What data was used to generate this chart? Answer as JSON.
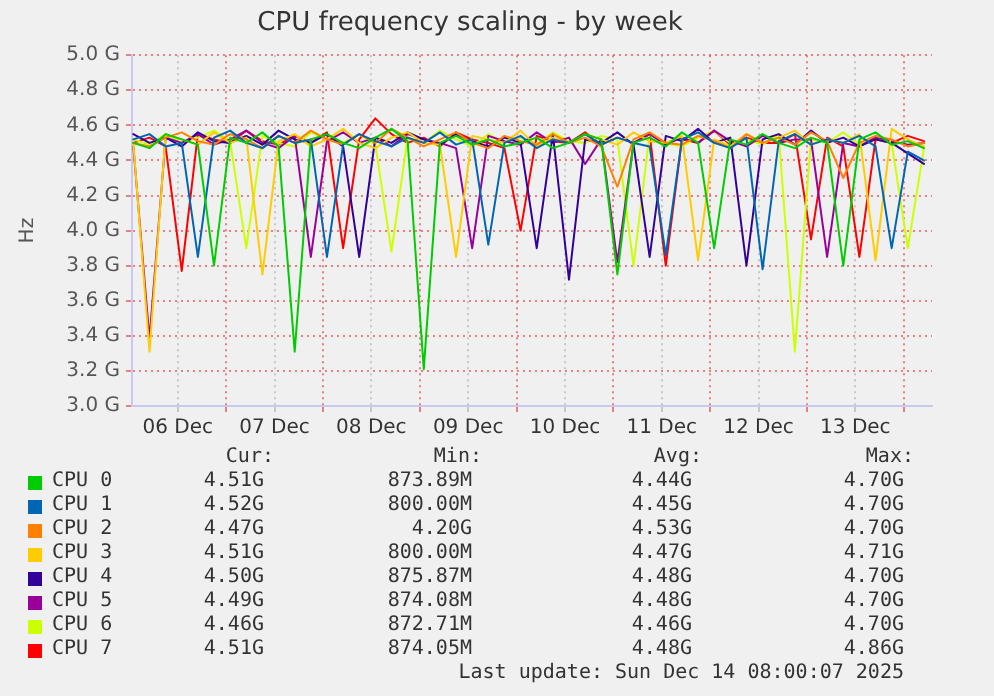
{
  "chart_data": {
    "type": "line",
    "title": "CPU frequency scaling - by week",
    "ylabel": "Hz",
    "x": [
      "2025-12-06T01:00",
      "2025-12-06T05:00",
      "2025-12-06T09:00",
      "2025-12-06T13:00",
      "2025-12-06T17:00",
      "2025-12-06T21:00",
      "2025-12-07T01:00",
      "2025-12-07T05:00",
      "2025-12-07T09:00",
      "2025-12-07T13:00",
      "2025-12-07T17:00",
      "2025-12-07T21:00",
      "2025-12-08T01:00",
      "2025-12-08T05:00",
      "2025-12-08T09:00",
      "2025-12-08T13:00",
      "2025-12-08T17:00",
      "2025-12-08T21:00",
      "2025-12-09T01:00",
      "2025-12-09T05:00",
      "2025-12-09T09:00",
      "2025-12-09T13:00",
      "2025-12-09T17:00",
      "2025-12-09T21:00",
      "2025-12-10T01:00",
      "2025-12-10T05:00",
      "2025-12-10T09:00",
      "2025-12-10T13:00",
      "2025-12-10T17:00",
      "2025-12-10T21:00",
      "2025-12-11T01:00",
      "2025-12-11T05:00",
      "2025-12-11T09:00",
      "2025-12-11T13:00",
      "2025-12-11T17:00",
      "2025-12-11T21:00",
      "2025-12-12T01:00",
      "2025-12-12T05:00",
      "2025-12-12T09:00",
      "2025-12-12T13:00",
      "2025-12-12T17:00",
      "2025-12-12T21:00",
      "2025-12-13T01:00",
      "2025-12-13T05:00",
      "2025-12-13T09:00",
      "2025-12-13T13:00",
      "2025-12-13T17:00",
      "2025-12-13T21:00",
      "2025-12-14T01:00",
      "2025-12-14T05:00"
    ],
    "series": [
      {
        "name": "CPU 0",
        "color": "#00cc00",
        "values": [
          4.5,
          4.47,
          4.55,
          4.52,
          4.49,
          3.8,
          4.53,
          4.5,
          4.56,
          4.48,
          3.31,
          4.52,
          4.55,
          4.5,
          4.47,
          4.53,
          4.58,
          4.51,
          3.21,
          4.5,
          4.54,
          4.49,
          4.52,
          4.48,
          4.5,
          4.53,
          4.47,
          4.5,
          4.55,
          4.52,
          3.75,
          4.5,
          4.53,
          4.48,
          4.56,
          4.5,
          3.9,
          4.52,
          4.49,
          4.55,
          4.5,
          4.47,
          4.53,
          4.5,
          3.8,
          4.52,
          4.56,
          4.49,
          4.51,
          4.47
        ]
      },
      {
        "name": "CPU 1",
        "color": "#0066b3",
        "values": [
          4.52,
          4.55,
          4.48,
          4.5,
          3.85,
          4.53,
          4.57,
          4.5,
          4.47,
          4.54,
          4.5,
          4.52,
          3.85,
          4.49,
          4.55,
          4.51,
          4.48,
          4.53,
          4.5,
          4.56,
          4.49,
          4.52,
          3.92,
          4.5,
          4.54,
          4.47,
          4.52,
          4.5,
          4.55,
          4.49,
          4.53,
          4.5,
          4.48,
          3.86,
          4.52,
          4.56,
          4.5,
          4.47,
          4.53,
          3.78,
          4.51,
          4.55,
          4.49,
          4.52,
          4.5,
          4.54,
          4.48,
          3.9,
          4.45,
          4.4
        ]
      },
      {
        "name": "CPU 2",
        "color": "#ff8000",
        "values": [
          4.5,
          4.48,
          4.53,
          4.56,
          4.51,
          4.49,
          4.55,
          4.52,
          4.47,
          4.54,
          4.5,
          4.57,
          4.52,
          4.49,
          4.55,
          4.5,
          4.58,
          4.53,
          4.48,
          4.52,
          4.56,
          4.5,
          4.47,
          4.54,
          4.51,
          4.49,
          4.55,
          4.5,
          4.53,
          4.48,
          4.25,
          4.52,
          4.56,
          4.5,
          4.49,
          4.54,
          4.51,
          4.47,
          4.55,
          4.5,
          4.53,
          4.49,
          4.56,
          4.51,
          4.3,
          4.5,
          4.54,
          4.52,
          4.48,
          4.5
        ]
      },
      {
        "name": "CPU 3",
        "color": "#ffcc00",
        "values": [
          4.5,
          3.31,
          4.55,
          4.52,
          4.49,
          4.56,
          4.5,
          4.53,
          3.75,
          4.51,
          4.55,
          4.48,
          4.52,
          4.58,
          4.5,
          4.47,
          4.53,
          4.56,
          4.5,
          4.49,
          3.85,
          4.54,
          4.52,
          4.5,
          4.57,
          4.48,
          4.53,
          4.5,
          4.55,
          4.52,
          4.49,
          4.56,
          4.51,
          4.5,
          4.54,
          3.83,
          4.52,
          4.48,
          4.55,
          4.5,
          4.53,
          4.57,
          4.49,
          4.52,
          4.5,
          4.55,
          3.83,
          4.58,
          4.52,
          4.48
        ]
      },
      {
        "name": "CPU 4",
        "color": "#330099",
        "values": [
          4.55,
          4.5,
          4.53,
          4.48,
          4.56,
          4.51,
          4.5,
          4.54,
          4.49,
          4.57,
          4.52,
          4.5,
          4.55,
          4.48,
          3.85,
          4.53,
          4.5,
          4.56,
          4.52,
          4.49,
          4.55,
          4.51,
          4.48,
          4.53,
          4.5,
          3.9,
          4.55,
          3.72,
          4.52,
          4.5,
          4.56,
          4.49,
          3.85,
          4.54,
          4.51,
          4.58,
          4.5,
          4.53,
          3.8,
          4.52,
          4.55,
          4.49,
          4.57,
          4.5,
          4.53,
          4.48,
          4.52,
          4.5,
          4.44,
          4.38
        ]
      },
      {
        "name": "CPU 5",
        "color": "#990099",
        "values": [
          4.48,
          3.38,
          4.53,
          4.5,
          4.55,
          4.49,
          4.52,
          4.57,
          4.5,
          4.47,
          4.54,
          3.85,
          4.51,
          4.56,
          4.5,
          4.53,
          4.48,
          4.55,
          4.52,
          4.5,
          4.47,
          3.9,
          4.54,
          4.51,
          4.49,
          4.56,
          4.5,
          4.53,
          4.38,
          4.52,
          3.82,
          4.5,
          4.55,
          4.49,
          4.53,
          4.5,
          4.57,
          4.51,
          4.48,
          4.54,
          4.5,
          4.52,
          4.52,
          3.85,
          4.5,
          4.48,
          4.53,
          4.51,
          4.49,
          4.5
        ]
      },
      {
        "name": "CPU 6",
        "color": "#ccff00",
        "values": [
          4.52,
          4.49,
          4.55,
          4.5,
          4.53,
          4.57,
          4.51,
          3.9,
          4.54,
          4.5,
          4.48,
          4.56,
          4.52,
          4.5,
          4.55,
          4.49,
          3.88,
          4.53,
          4.5,
          4.57,
          4.52,
          4.48,
          4.55,
          4.5,
          4.53,
          4.49,
          4.56,
          4.51,
          4.5,
          4.54,
          4.52,
          3.8,
          4.55,
          4.5,
          4.48,
          4.53,
          4.57,
          4.5,
          4.52,
          4.49,
          4.55,
          3.31,
          4.52,
          4.5,
          4.56,
          4.49,
          4.53,
          4.5,
          3.9,
          4.47
        ]
      },
      {
        "name": "CPU 7",
        "color": "#ff0000",
        "values": [
          4.5,
          4.53,
          4.48,
          3.77,
          4.55,
          4.52,
          4.5,
          4.57,
          4.51,
          4.49,
          4.54,
          4.5,
          4.56,
          3.9,
          4.52,
          4.64,
          4.55,
          4.5,
          4.53,
          4.48,
          4.56,
          4.52,
          4.5,
          4.47,
          4.0,
          4.54,
          4.51,
          4.5,
          4.56,
          4.49,
          4.53,
          4.5,
          4.55,
          3.8,
          4.52,
          4.5,
          4.57,
          4.49,
          4.53,
          4.5,
          4.5,
          4.55,
          3.95,
          4.53,
          4.48,
          3.85,
          4.52,
          4.5,
          4.54,
          4.51
        ]
      }
    ],
    "xlim": [
      "2025-12-06T00:40",
      "2025-12-14T07:00"
    ],
    "xticks": [
      {
        "value": "2025-12-06T12:00",
        "label": "06 Dec"
      },
      {
        "value": "2025-12-07T00:00",
        "label": null
      },
      {
        "value": "2025-12-07T12:00",
        "label": "07 Dec"
      },
      {
        "value": "2025-12-08T00:00",
        "label": null
      },
      {
        "value": "2025-12-08T12:00",
        "label": "08 Dec"
      },
      {
        "value": "2025-12-09T00:00",
        "label": null
      },
      {
        "value": "2025-12-09T12:00",
        "label": "09 Dec"
      },
      {
        "value": "2025-12-10T00:00",
        "label": null
      },
      {
        "value": "2025-12-10T12:00",
        "label": "10 Dec"
      },
      {
        "value": "2025-12-11T00:00",
        "label": null
      },
      {
        "value": "2025-12-11T12:00",
        "label": "11 Dec"
      },
      {
        "value": "2025-12-12T00:00",
        "label": null
      },
      {
        "value": "2025-12-12T12:00",
        "label": "12 Dec"
      },
      {
        "value": "2025-12-13T00:00",
        "label": null
      },
      {
        "value": "2025-12-13T12:00",
        "label": "13 Dec"
      },
      {
        "value": "2025-12-14T00:00",
        "label": null
      }
    ],
    "ylim": [
      3.0,
      5.0
    ],
    "yticks": [
      {
        "value": 3.0,
        "label": "3.0 G"
      },
      {
        "value": 3.2,
        "label": "3.2 G"
      },
      {
        "value": 3.4,
        "label": "3.4 G"
      },
      {
        "value": 3.6,
        "label": "3.6 G"
      },
      {
        "value": 3.8,
        "label": "3.8 G"
      },
      {
        "value": 4.0,
        "label": "4.0 G"
      },
      {
        "value": 4.2,
        "label": "4.2 G"
      },
      {
        "value": 4.4,
        "label": "4.4 G"
      },
      {
        "value": 4.6,
        "label": "4.6 G"
      },
      {
        "value": 4.8,
        "label": "4.8 G"
      },
      {
        "value": 5.0,
        "label": "5.0 G"
      }
    ],
    "grid": true,
    "legend": "bottom",
    "marker": "none",
    "line_style": "solid",
    "annotations": [
      "Cur:",
      "Min:",
      "Avg:",
      "Max:",
      "4.51G",
      "873.89M",
      "4.44G",
      "4.70G",
      "4.52G",
      "800.00M",
      "4.45G",
      "4.70G",
      "4.47G",
      "4.20G",
      "4.53G",
      "4.70G",
      "4.51G",
      "800.00M",
      "4.47G",
      "4.71G",
      "4.50G",
      "875.87M",
      "4.48G",
      "4.70G",
      "4.49G",
      "874.08M",
      "4.48G",
      "4.70G",
      "4.46G",
      "872.71M",
      "4.46G",
      "4.70G",
      "4.51G",
      "874.05M",
      "4.48G",
      "4.86G",
      "Last update: Sun Dec 14 08:00:07 2025"
    ]
  }
}
